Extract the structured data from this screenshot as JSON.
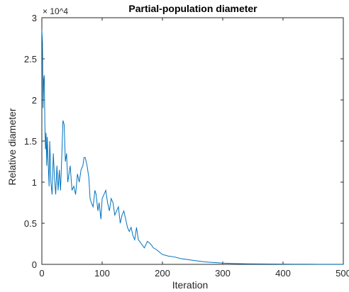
{
  "chart_data": {
    "type": "line",
    "title": "Partial-population diameter",
    "xlabel": "Iteration",
    "ylabel": "Relative diameter",
    "xlim": [
      0,
      500
    ],
    "ylim": [
      0,
      30000
    ],
    "x_ticks": [
      0,
      100,
      200,
      300,
      400,
      500
    ],
    "x_tick_labels": [
      "0",
      "100",
      "200",
      "300",
      "400",
      "500"
    ],
    "y_ticks": [
      0,
      5000,
      10000,
      15000,
      20000,
      25000,
      30000
    ],
    "y_tick_labels": [
      "0",
      "0.5",
      "1",
      "1.5",
      "2",
      "2.5",
      "3"
    ],
    "y_exponent_label": "× 10^4",
    "grid": false,
    "line_color": "#0072BD",
    "series": [
      {
        "x": [
          0,
          1,
          2,
          3,
          4,
          5,
          6,
          7,
          8,
          9,
          10,
          11,
          12,
          13,
          14,
          15,
          17,
          19,
          21,
          23,
          25,
          27,
          29,
          31,
          33,
          35,
          37,
          39,
          41,
          43,
          45,
          47,
          50,
          53,
          56,
          59,
          62,
          65,
          68,
          70,
          72,
          75,
          78,
          80,
          82,
          85,
          88,
          90,
          93,
          95,
          98,
          100,
          103,
          106,
          109,
          112,
          115,
          118,
          121,
          124,
          127,
          130,
          133,
          136,
          139,
          142,
          145,
          148,
          151,
          154,
          157,
          160,
          165,
          170,
          175,
          180,
          185,
          190,
          195,
          200,
          210,
          220,
          230,
          240,
          250,
          260,
          270,
          280,
          290,
          300,
          320,
          340,
          360,
          380,
          400,
          420,
          440,
          460,
          480,
          500
        ],
        "y": [
          28500,
          27000,
          19000,
          22500,
          23000,
          17000,
          14000,
          16000,
          12000,
          15500,
          13000,
          11500,
          9500,
          15000,
          13000,
          10000,
          8500,
          13500,
          10500,
          8500,
          12000,
          9000,
          11500,
          9000,
          13000,
          17500,
          17000,
          12500,
          13500,
          10000,
          11000,
          12000,
          9000,
          9500,
          8500,
          11000,
          10000,
          11500,
          12000,
          13000,
          13000,
          12000,
          10500,
          8000,
          7500,
          7000,
          9000,
          8500,
          6500,
          7500,
          5500,
          8000,
          8500,
          9000,
          7500,
          6500,
          8000,
          7500,
          6000,
          6500,
          7000,
          5000,
          6000,
          6500,
          5500,
          4500,
          4000,
          4500,
          3500,
          3000,
          4500,
          3000,
          2500,
          2000,
          2800,
          2500,
          2000,
          1800,
          1500,
          1200,
          1000,
          900,
          700,
          600,
          500,
          400,
          300,
          250,
          200,
          150,
          100,
          70,
          50,
          40,
          30,
          25,
          20,
          15,
          12,
          10
        ]
      }
    ]
  }
}
